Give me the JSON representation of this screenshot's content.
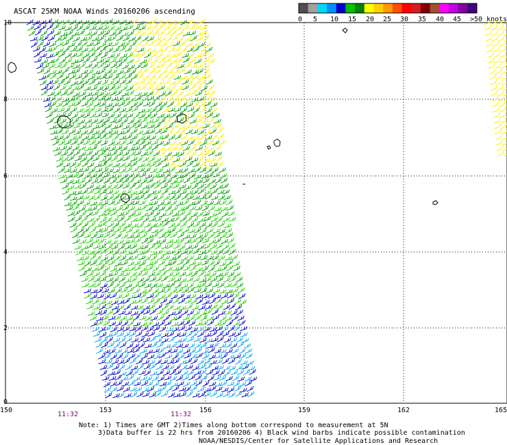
{
  "title": "ASCAT 25KM NOAA Winds 20160206 ascending",
  "colorbar": {
    "colors": [
      "#505050",
      "#a0a0a0",
      "#00d8f8",
      "#0090ff",
      "#0000d0",
      "#00c000",
      "#008000",
      "#ffff00",
      "#ffd000",
      "#ff9a00",
      "#ff5000",
      "#ff0000",
      "#d02020",
      "#800000",
      "#a05030",
      "#ff00ff",
      "#c000e0",
      "#8000a0",
      "#400080"
    ],
    "labels": [
      "0",
      "5",
      "10",
      "15",
      "20",
      "25",
      "30",
      "35",
      "40",
      "45",
      ">50 knots"
    ]
  },
  "axes": {
    "x_ticks": [
      "150",
      "153",
      "156",
      "159",
      "162",
      "165"
    ],
    "y_ticks": [
      "0",
      "2",
      "4",
      "6",
      "8",
      "10"
    ]
  },
  "times": [
    "11:32",
    "11:32"
  ],
  "notes": [
    "Note: 1) Times are GMT 2)Times along bottom correspond to measurement at 5N",
    "3)Data buffer is 22 hrs from 20160206 4) Black wind barbs indicate possible contamination",
    "NOAA/NESDIS/Center for Satellite Applications and Research"
  ],
  "wind_colors": {
    "blue": "#0000d0",
    "lightblue": "#00a8f0",
    "green": "#00a000",
    "lightgreen": "#20d000",
    "yellow": "#ffee00"
  }
}
